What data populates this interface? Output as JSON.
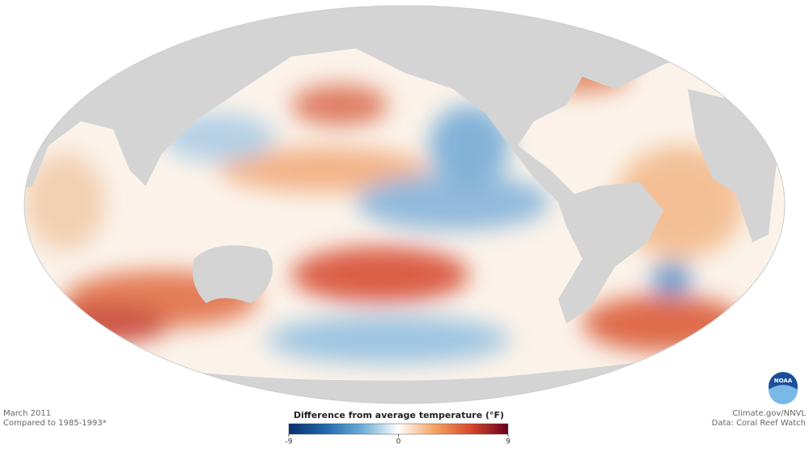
{
  "map": {
    "date": "March 2011",
    "baseline": "Compared to 1985-1993*",
    "credit": "Climate.gov/NNVL",
    "source": "Data: Coral Reef Watch",
    "logo": "NOAA"
  },
  "legend": {
    "title": "Difference from average temperature (°F)",
    "range": [
      -9,
      9
    ],
    "ticks": [
      -9,
      0,
      9
    ],
    "colors": [
      "#08306b",
      "#2166ac",
      "#6baed6",
      "#ffffff",
      "#f4a261",
      "#d6452a",
      "#67001f"
    ]
  }
}
